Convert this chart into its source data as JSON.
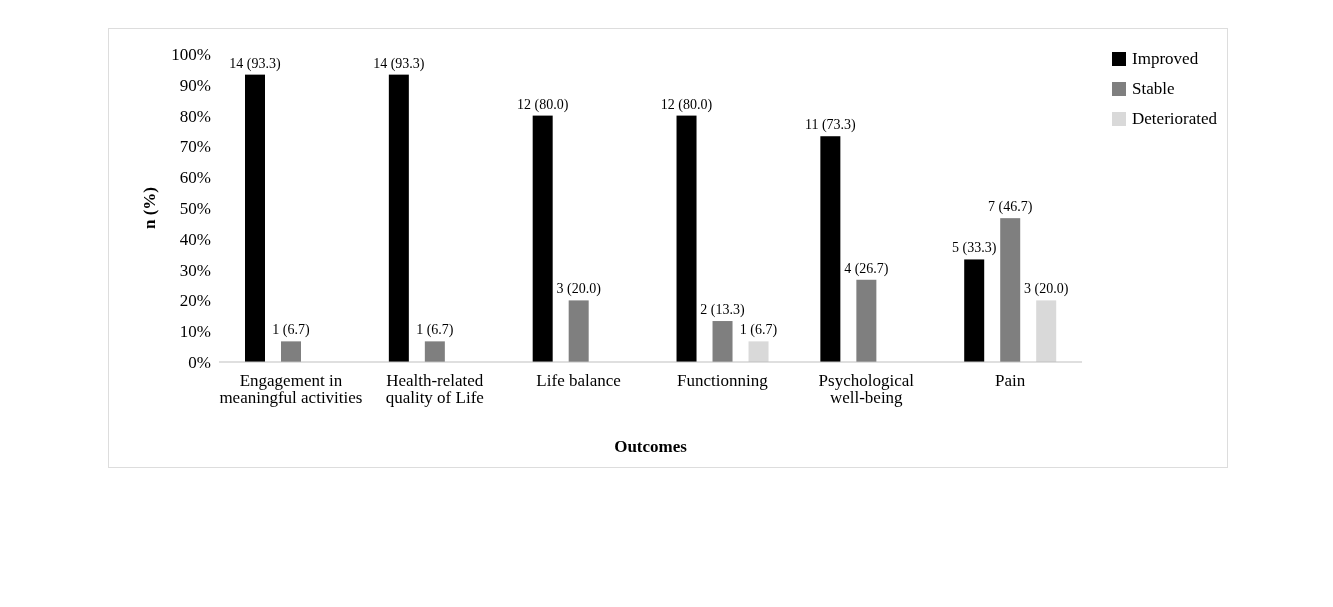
{
  "chart_data": {
    "type": "bar",
    "xlabel": "Outcomes",
    "ylabel": "n (%)",
    "categories": [
      "Engagement in meaningful activities",
      "Health-related quality of Life",
      "Life balance",
      "Functionning",
      "Psychological well-being",
      "Pain"
    ],
    "series": [
      {
        "name": "Improved",
        "color": "#000000",
        "values": [
          93.3,
          93.3,
          80.0,
          80.0,
          73.3,
          33.3
        ],
        "value_labels": [
          "14 (93.3)",
          "14 (93.3)",
          "12 (80.0)",
          "12 (80.0)",
          "11 (73.3)",
          "5 (33.3)"
        ]
      },
      {
        "name": "Stable",
        "color": "#7f7f7f",
        "values": [
          6.7,
          6.7,
          20.0,
          13.3,
          26.7,
          46.7
        ],
        "value_labels": [
          "1 (6.7)",
          "1 (6.7)",
          "3 (20.0)",
          "2 (13.3)",
          "4 (26.7)",
          "7 (46.7)"
        ]
      },
      {
        "name": "Deteriorated",
        "color": "#d9d9d9",
        "values": [
          null,
          null,
          null,
          6.7,
          null,
          20.0
        ],
        "value_labels": [
          null,
          null,
          null,
          "1 (6.7)",
          null,
          "3 (20.0)"
        ]
      }
    ],
    "ylim": [
      0,
      100
    ],
    "yticks": [
      {
        "value": 0,
        "label": "0%"
      },
      {
        "value": 10,
        "label": "10%"
      },
      {
        "value": 20,
        "label": "20%"
      },
      {
        "value": 30,
        "label": "30%"
      },
      {
        "value": 40,
        "label": "40%"
      },
      {
        "value": 50,
        "label": "50%"
      },
      {
        "value": 60,
        "label": "60%"
      },
      {
        "value": 70,
        "label": "70%"
      },
      {
        "value": 80,
        "label": "80%"
      },
      {
        "value": 90,
        "label": "90%"
      },
      {
        "value": 100,
        "label": "100%"
      }
    ],
    "legend": "top right",
    "grid": false
  }
}
